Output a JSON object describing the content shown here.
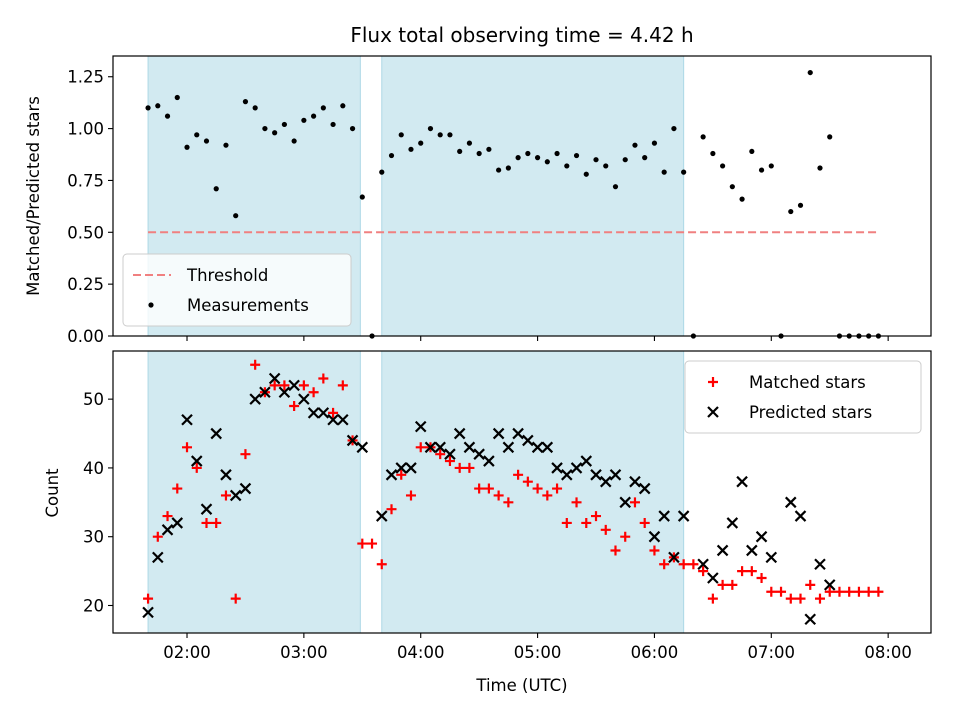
{
  "chart_data": [
    {
      "type": "scatter",
      "title": "Flux total observing time = 4.42 h",
      "ylabel": "Matched/Predicted stars",
      "xlabel": "",
      "x_unit": "hours UTC",
      "xlim": [
        "01:22",
        "08:22"
      ],
      "ylim": [
        0,
        1.35
      ],
      "y_ticks": [
        0.0,
        0.25,
        0.5,
        0.75,
        1.0,
        1.25
      ],
      "y_tick_labels": [
        "0.00",
        "0.25",
        "0.50",
        "0.75",
        "1.00",
        "1.25"
      ],
      "x_ticks": [
        "02:00",
        "03:00",
        "04:00",
        "05:00",
        "06:00",
        "07:00",
        "08:00"
      ],
      "shaded_intervals": [
        [
          "01:40",
          "03:29"
        ],
        [
          "03:40",
          "06:15"
        ]
      ],
      "shade_color": "#add8e6",
      "legend_position": "lower left",
      "threshold": {
        "name": "Threshold",
        "value": 0.5,
        "x_range": [
          "01:40",
          "07:55"
        ],
        "color": "#f08080",
        "style": "dashed"
      },
      "series": [
        {
          "name": "Measurements",
          "marker": "dot",
          "color": "#000000",
          "x": [
            "01:40",
            "01:45",
            "01:50",
            "01:55",
            "02:00",
            "02:05",
            "02:10",
            "02:15",
            "02:20",
            "02:25",
            "02:30",
            "02:35",
            "02:40",
            "02:45",
            "02:50",
            "02:55",
            "03:00",
            "03:05",
            "03:10",
            "03:15",
            "03:20",
            "03:25",
            "03:30",
            "03:35",
            "03:40",
            "03:45",
            "03:50",
            "03:55",
            "04:00",
            "04:05",
            "04:10",
            "04:15",
            "04:20",
            "04:25",
            "04:30",
            "04:35",
            "04:40",
            "04:45",
            "04:50",
            "04:55",
            "05:00",
            "05:05",
            "05:10",
            "05:15",
            "05:20",
            "05:25",
            "05:30",
            "05:35",
            "05:40",
            "05:45",
            "05:50",
            "05:55",
            "06:00",
            "06:05",
            "06:10",
            "06:15",
            "06:20",
            "06:25",
            "06:30",
            "06:35",
            "06:40",
            "06:45",
            "06:50",
            "06:55",
            "07:00",
            "07:05",
            "07:10",
            "07:15",
            "07:20",
            "07:25",
            "07:30",
            "07:35",
            "07:40",
            "07:45",
            "07:50",
            "07:55"
          ],
          "y": [
            1.1,
            1.11,
            1.06,
            1.15,
            0.91,
            0.97,
            0.94,
            0.71,
            0.92,
            0.58,
            1.13,
            1.1,
            1.0,
            0.98,
            1.02,
            0.94,
            1.04,
            1.06,
            1.1,
            1.02,
            1.11,
            1.0,
            0.67,
            0.0,
            0.79,
            0.87,
            0.97,
            0.9,
            0.93,
            1.0,
            0.97,
            0.97,
            0.89,
            0.93,
            0.88,
            0.9,
            0.8,
            0.81,
            0.86,
            0.88,
            0.86,
            0.84,
            0.88,
            0.82,
            0.87,
            0.78,
            0.85,
            0.82,
            0.72,
            0.85,
            0.92,
            0.86,
            0.93,
            0.79,
            1.0,
            0.79,
            0.0,
            0.96,
            0.88,
            0.82,
            0.72,
            0.66,
            0.89,
            0.8,
            0.82,
            0.0,
            0.6,
            0.63,
            1.27,
            0.81,
            0.96,
            0.0,
            0.0,
            0.0,
            0.0,
            0.0
          ]
        }
      ]
    },
    {
      "type": "scatter",
      "title": "",
      "ylabel": "Count",
      "xlabel": "Time (UTC)",
      "x_unit": "hours UTC",
      "xlim": [
        "01:22",
        "08:22"
      ],
      "ylim": [
        16,
        57
      ],
      "y_ticks": [
        20,
        30,
        40,
        50
      ],
      "y_tick_labels": [
        "20",
        "30",
        "40",
        "50"
      ],
      "x_ticks": [
        "02:00",
        "03:00",
        "04:00",
        "05:00",
        "06:00",
        "07:00",
        "08:00"
      ],
      "x_tick_labels": [
        "02:00",
        "03:00",
        "04:00",
        "05:00",
        "06:00",
        "07:00",
        "08:00"
      ],
      "shaded_intervals": [
        [
          "01:40",
          "03:29"
        ],
        [
          "03:40",
          "06:15"
        ]
      ],
      "shade_color": "#add8e6",
      "legend_position": "upper right",
      "series": [
        {
          "name": "Matched stars",
          "marker": "plus",
          "color": "#ff0000",
          "x": [
            "01:40",
            "01:45",
            "01:50",
            "01:55",
            "02:00",
            "02:05",
            "02:10",
            "02:15",
            "02:20",
            "02:25",
            "02:30",
            "02:35",
            "02:40",
            "02:45",
            "02:50",
            "02:55",
            "03:00",
            "03:05",
            "03:10",
            "03:15",
            "03:20",
            "03:25",
            "03:30",
            "03:35",
            "03:40",
            "03:45",
            "03:50",
            "03:55",
            "04:00",
            "04:05",
            "04:10",
            "04:15",
            "04:20",
            "04:25",
            "04:30",
            "04:35",
            "04:40",
            "04:45",
            "04:50",
            "04:55",
            "05:00",
            "05:05",
            "05:10",
            "05:15",
            "05:20",
            "05:25",
            "05:30",
            "05:35",
            "05:40",
            "05:45",
            "05:50",
            "05:55",
            "06:00",
            "06:05",
            "06:10",
            "06:15",
            "06:20",
            "06:25",
            "06:30",
            "06:35",
            "06:40",
            "06:45",
            "06:50",
            "06:55",
            "07:00",
            "07:05",
            "07:10",
            "07:15",
            "07:20",
            "07:25",
            "07:30",
            "07:35",
            "07:40",
            "07:45",
            "07:50",
            "07:55"
          ],
          "y": [
            21,
            30,
            33,
            37,
            43,
            40,
            32,
            32,
            36,
            21,
            42,
            55,
            51,
            52,
            52,
            49,
            52,
            51,
            53,
            48,
            52,
            44,
            29,
            29,
            26,
            34,
            39,
            36,
            43,
            43,
            42,
            41,
            40,
            40,
            37,
            37,
            36,
            35,
            39,
            38,
            37,
            36,
            37,
            32,
            35,
            32,
            33,
            31,
            28,
            30,
            35,
            32,
            28,
            26,
            27,
            26,
            26,
            25,
            21,
            23,
            23,
            25,
            25,
            24,
            22,
            22,
            21,
            21,
            23,
            21,
            22,
            22,
            22,
            22,
            22,
            22
          ]
        },
        {
          "name": "Predicted stars",
          "marker": "x",
          "color": "#000000",
          "x": [
            "01:40",
            "01:45",
            "01:50",
            "01:55",
            "02:00",
            "02:05",
            "02:10",
            "02:15",
            "02:20",
            "02:25",
            "02:30",
            "02:35",
            "02:40",
            "02:45",
            "02:50",
            "02:55",
            "03:00",
            "03:05",
            "03:10",
            "03:15",
            "03:20",
            "03:25",
            "03:30",
            "03:40",
            "03:45",
            "03:50",
            "03:55",
            "04:00",
            "04:05",
            "04:10",
            "04:15",
            "04:20",
            "04:25",
            "04:30",
            "04:35",
            "04:40",
            "04:45",
            "04:50",
            "04:55",
            "05:00",
            "05:05",
            "05:10",
            "05:15",
            "05:20",
            "05:25",
            "05:30",
            "05:35",
            "05:40",
            "05:45",
            "05:50",
            "05:55",
            "06:00",
            "06:05",
            "06:10",
            "06:15",
            "06:25",
            "06:30",
            "06:35",
            "06:40",
            "06:45",
            "06:50",
            "06:55",
            "07:00",
            "07:10",
            "07:15",
            "07:20",
            "07:25",
            "07:30"
          ],
          "y": [
            19,
            27,
            31,
            32,
            47,
            41,
            34,
            45,
            39,
            36,
            37,
            50,
            51,
            53,
            51,
            52,
            50,
            48,
            48,
            47,
            47,
            44,
            43,
            33,
            39,
            40,
            40,
            46,
            43,
            43,
            42,
            45,
            43,
            42,
            41,
            45,
            43,
            45,
            44,
            43,
            43,
            40,
            39,
            40,
            41,
            39,
            38,
            39,
            35,
            38,
            37,
            30,
            33,
            27,
            33,
            26,
            24,
            28,
            32,
            38,
            28,
            30,
            27,
            35,
            33,
            18,
            26,
            23
          ]
        }
      ]
    }
  ]
}
